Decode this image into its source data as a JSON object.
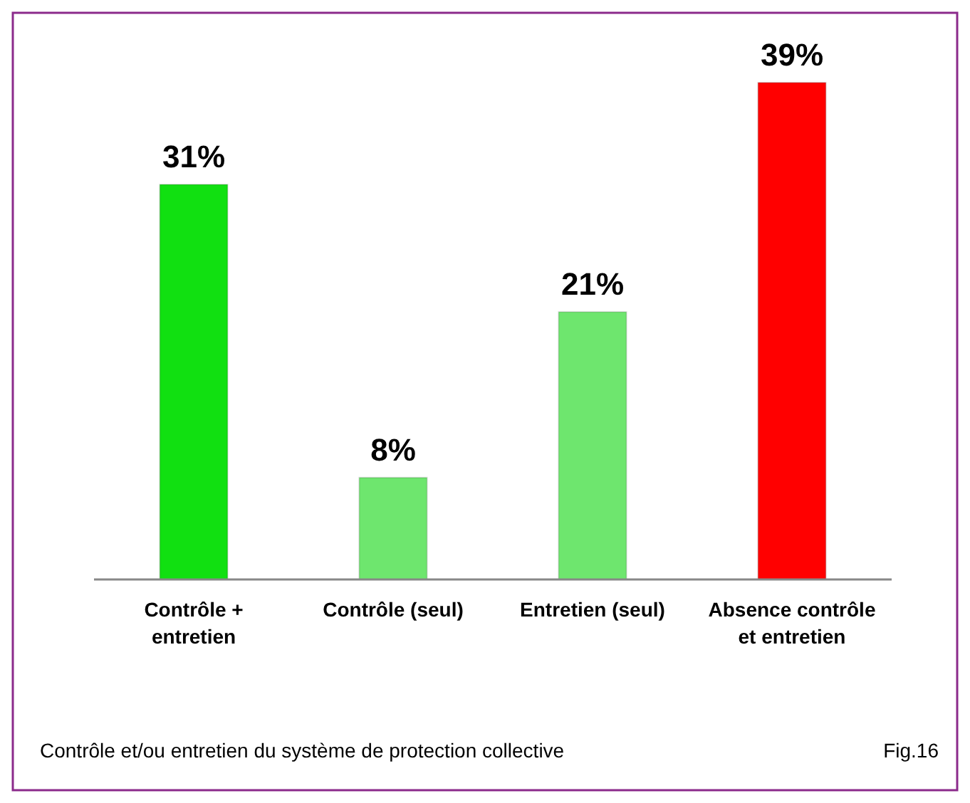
{
  "chart_data": {
    "type": "bar",
    "categories": [
      "Contrôle + entretien",
      "Contrôle (seul)",
      "Entretien (seul)",
      "Absence contrôle et entretien"
    ],
    "values": [
      31,
      8,
      21,
      39
    ],
    "colors": [
      "#11e011",
      "#6ee66e",
      "#6ee66e",
      "#ff0000"
    ],
    "data_labels": true,
    "value_labels": [
      "31%",
      "8%",
      "21%",
      "39%"
    ],
    "annotations": [
      "Contrôle et/ou entretien du système de protection collective",
      "Fig.16"
    ]
  }
}
